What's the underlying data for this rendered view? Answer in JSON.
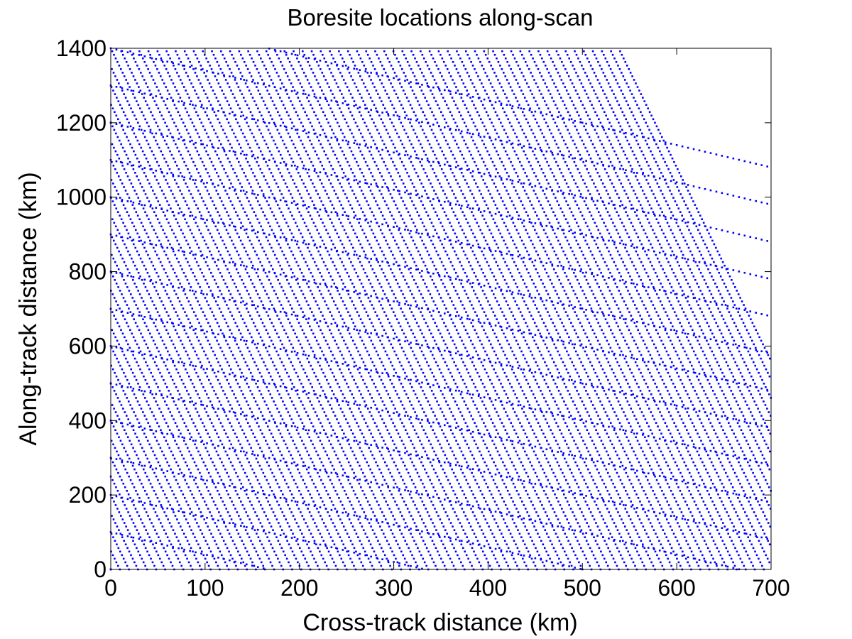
{
  "chart_data": {
    "type": "scatter",
    "title": "Boresite locations along-scan",
    "xlabel": "Cross-track distance (km)",
    "ylabel": "Along-track distance (km)",
    "xlim": [
      0,
      700
    ],
    "ylim": [
      0,
      1400
    ],
    "xticks": [
      "0",
      "100",
      "200",
      "300",
      "400",
      "500",
      "600",
      "700"
    ],
    "yticks": [
      "0",
      "200",
      "400",
      "600",
      "800",
      "1000",
      "1200",
      "1400"
    ],
    "grid": false,
    "legend": "none",
    "marker": "dot",
    "series_color": "#0000ff",
    "series": [
      {
        "pattern": "interleaved along-scan sweeps of boresight samples",
        "scan_line_offsets_km": [
          -400,
          -300,
          -200,
          -100,
          0,
          100,
          200,
          300,
          400,
          500,
          600,
          700,
          800,
          900,
          1000,
          1100,
          1200,
          1300,
          1400,
          1500
        ],
        "scan_line_slope": -0.6,
        "diagonal_line_spacing_km": 50,
        "diagonal_line_slope": -5.2,
        "sample_spacing_km": 6
      }
    ]
  },
  "colors": {
    "points": "#0000ff",
    "axes": "#000000",
    "background": "#ffffff"
  }
}
